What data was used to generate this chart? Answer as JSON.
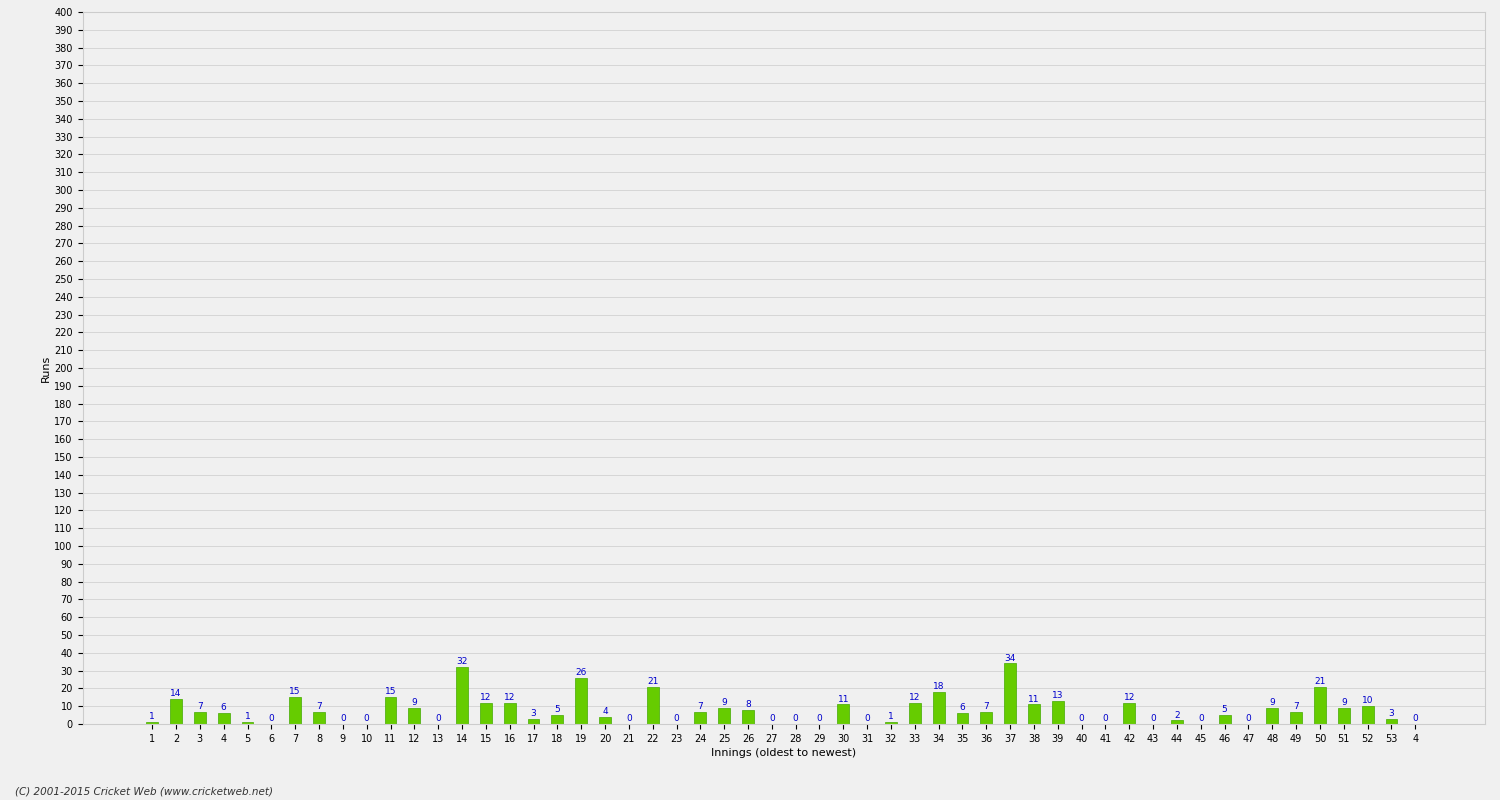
{
  "values": [
    1,
    14,
    7,
    6,
    1,
    0,
    15,
    7,
    0,
    0,
    15,
    9,
    0,
    32,
    12,
    12,
    3,
    5,
    26,
    4,
    0,
    21,
    0,
    7,
    9,
    8,
    0,
    0,
    0,
    11,
    0,
    1,
    12,
    18,
    6,
    7,
    34,
    11,
    13,
    0,
    0,
    12,
    0,
    2,
    0,
    5,
    0,
    9,
    7,
    21,
    9,
    10,
    3,
    0
  ],
  "x_labels": [
    "1",
    "2",
    "3",
    "4",
    "5",
    "6",
    "7",
    "8",
    "9",
    "10",
    "11",
    "12",
    "13",
    "14",
    "15",
    "16",
    "17",
    "18",
    "19",
    "20",
    "21",
    "22",
    "23",
    "24",
    "25",
    "26",
    "27",
    "28",
    "29",
    "30",
    "31",
    "32",
    "33",
    "34",
    "35",
    "36",
    "37",
    "38",
    "39",
    "40",
    "41",
    "42",
    "43",
    "44",
    "45",
    "46",
    "47",
    "48",
    "49",
    "50",
    "51",
    "52",
    "53",
    "4"
  ],
  "bar_color": "#66cc00",
  "bar_edge_color": "#44aa00",
  "label_color": "#0000cc",
  "background_color": "#f0f0f0",
  "grid_color": "#cccccc",
  "ylabel": "Runs",
  "xlabel": "Innings (oldest to newest)",
  "ylim": [
    0,
    400
  ],
  "footer": "(C) 2001-2015 Cricket Web (www.cricketweb.net)"
}
